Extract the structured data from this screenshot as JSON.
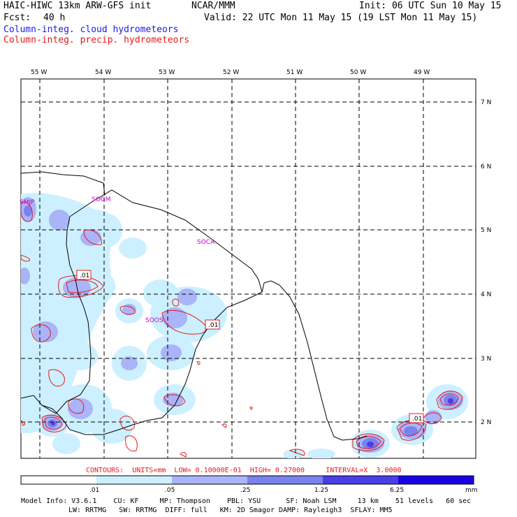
{
  "header": {
    "model_title": "HAIC-HIWC 13km ARW-GFS init",
    "org": "NCAR/MMM",
    "init": "Init: 06 UTC Sun 10 May 15",
    "fcst_label": "Fcst:",
    "fcst_value": "40 h",
    "valid": "Valid: 22 UTC Mon 11 May 15 (19 LST Mon 11 May 15)",
    "field1": "Column-integ. cloud hydrometeors",
    "field2": "Column-integ. precip. hydrometeors"
  },
  "map": {
    "lon_labels": [
      "55 W",
      "54 W",
      "53 W",
      "52 W",
      "51 W",
      "50 W",
      "49 W"
    ],
    "lat_labels": [
      "7 N",
      "6 N",
      "5 N",
      "4 N",
      "3 N",
      "2 N"
    ],
    "stations": [
      "SMJP",
      "SOGM",
      "SOCA",
      "SOOS"
    ],
    "contour_labels": [
      ".01",
      ".01",
      ".01"
    ]
  },
  "contours_line": "CONTOURS:  UNITS=mm  LOW= 0.10000E-01  HIGH= 0.27000     INTERVAL=X  3.0000",
  "colorbar": {
    "ticks": [
      ".01",
      ".05",
      ".25",
      "1.25",
      "6.25"
    ],
    "unit": "mm",
    "colors": [
      "#ffffff",
      "#ccf0ff",
      "#aab4f8",
      "#7a82ee",
      "#4a3ee6",
      "#1a00e6"
    ]
  },
  "model_info": {
    "line1": "Model Info: V3.6.1    CU: KF     MP: Thompson    PBL: YSU      SF: Noah LSM     13 km    51 levels   60 sec",
    "line2": "LW: RRTMG   SW: RRTMG  DIFF: full   KM: 2D Smagor DAMP: Rayleigh3  SFLAY: MM5"
  }
}
